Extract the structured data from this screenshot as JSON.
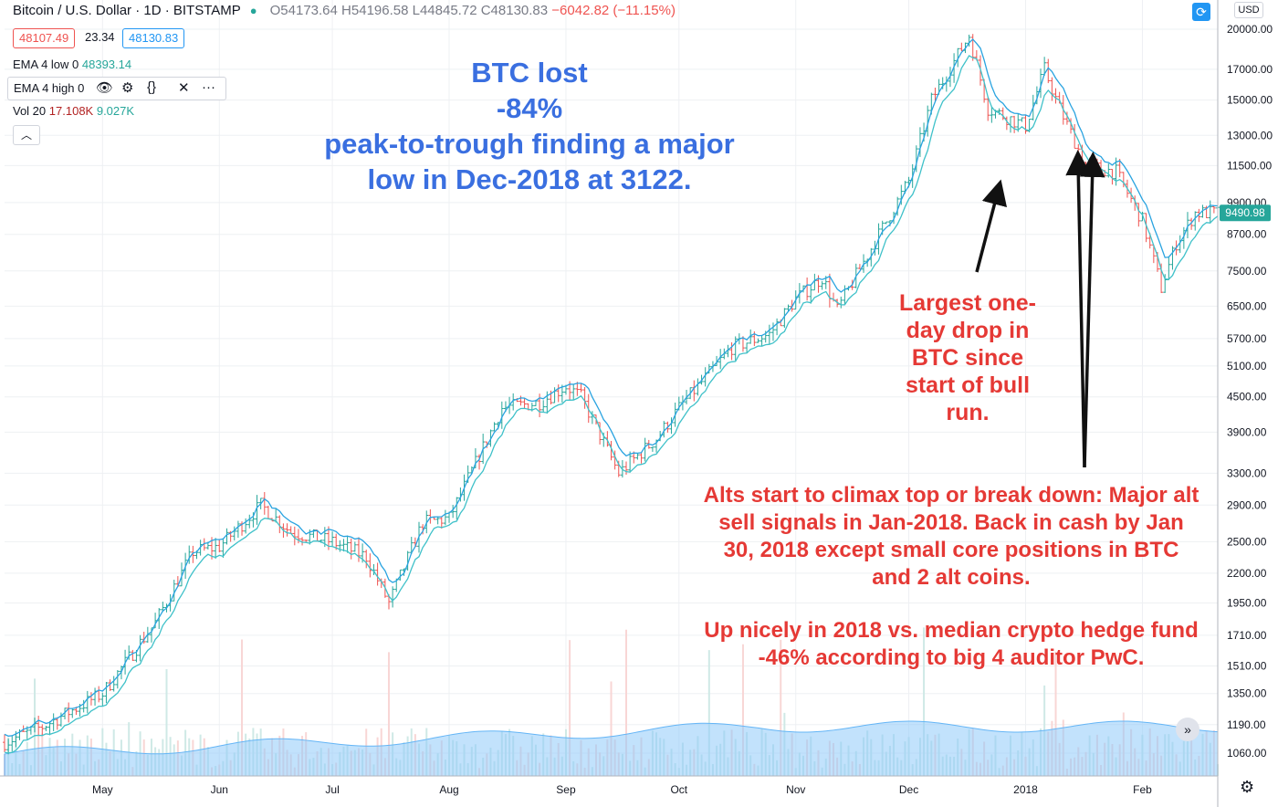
{
  "header": {
    "symbol": "Bitcoin / U.S. Dollar · 1D · BITSTAMP",
    "open": "O54173.64",
    "high": "H54196.58",
    "low": "L44845.72",
    "close": "C48130.83",
    "change": "−6042.82 (−11.15%)"
  },
  "quote": {
    "bid": "48107.49",
    "spread": "23.34",
    "ask": "48130.83"
  },
  "indicators": {
    "ema_low": {
      "label": "EMA 4 low 0",
      "value": "48393.14"
    },
    "ema_high": {
      "label": "EMA 4 high 0"
    },
    "volume": {
      "label": "Vol 20",
      "value1": "17.108K",
      "value2": "9.027K"
    }
  },
  "toolbar": {
    "currency": "USD",
    "collapse_icon": "chevron-up-icon",
    "eye_icon": "eye-icon",
    "settings_icon": "gear-icon",
    "source_icon": "braces-icon",
    "close_icon": "close-icon",
    "more_icon": "more-icon"
  },
  "annotations": {
    "blue": [
      "BTC lost",
      "-84%",
      "peak-to-trough finding a major",
      "low in Dec-2018 at 3122."
    ],
    "red1": [
      "Largest one-",
      "day drop in",
      "BTC since",
      "start of bull",
      "run."
    ],
    "red2": [
      "Alts start to climax top or break down: Major alt",
      "sell signals in Jan-2018. Back in cash by Jan",
      "30, 2018 except small core positions in BTC",
      "and 2 alt coins."
    ],
    "red3": [
      "Up nicely in 2018 vs. median crypto hedge fund",
      "-46% according to big 4 auditor PwC."
    ]
  },
  "colors": {
    "up": "#26a69a",
    "down": "#ef5350",
    "ema": "#29a3e0",
    "volume_area": "#90caf9",
    "last_price_bg": "#26a69a",
    "annotation_red": "#e53935",
    "annotation_blue": "#3a6fe0"
  },
  "chart_data": {
    "type": "line",
    "series": [
      {
        "x": [
          "2017-04-01",
          "2017-04-15",
          "2017-05-01",
          "2017-05-15",
          "2017-05-25",
          "2017-06-01",
          "2017-06-12",
          "2017-06-20",
          "2017-07-01",
          "2017-07-10",
          "2017-07-16",
          "2017-07-25",
          "2017-08-01",
          "2017-08-15",
          "2017-08-25",
          "2017-09-01",
          "2017-09-05",
          "2017-09-15",
          "2017-09-25",
          "2017-10-01",
          "2017-10-15",
          "2017-10-25",
          "2017-11-01",
          "2017-11-08",
          "2017-11-12",
          "2017-11-20",
          "2017-12-01",
          "2017-12-07",
          "2017-12-17",
          "2017-12-22",
          "2018-01-01",
          "2018-01-06",
          "2018-01-10",
          "2018-01-17",
          "2018-01-25",
          "2018-02-01",
          "2018-02-06",
          "2018-02-10",
          "2018-02-15"
        ],
        "values": [
          1080,
          1180,
          1350,
          1800,
          2400,
          2450,
          2900,
          2600,
          2500,
          2350,
          1950,
          2700,
          2750,
          4300,
          4400,
          4700,
          4500,
          3300,
          3800,
          4300,
          5500,
          5800,
          6700,
          7300,
          6400,
          8000,
          10800,
          15000,
          19500,
          14500,
          13500,
          17000,
          14500,
          11500,
          11200,
          9200,
          7000,
          8400,
          9490.98
        ]
      }
    ],
    "yticks": [
      1060,
      1190,
      1350,
      1510,
      1710,
      1950,
      2200,
      2500,
      2900,
      3300,
      3900,
      4500,
      5100,
      5700,
      6500,
      7500,
      8700,
      9900,
      11500,
      13000,
      15000,
      17000,
      20000
    ],
    "ytick_labels": [
      "1060.00",
      "1190.00",
      "1350.00",
      "1510.00",
      "1710.00",
      "1950.00",
      "2200.00",
      "2500.00",
      "2900.00",
      "3300.00",
      "3900.00",
      "4500.00",
      "5100.00",
      "5700.00",
      "6500.00",
      "7500.00",
      "8700.00",
      "9900.00",
      "11500.00",
      "13000.00",
      "15000.00",
      "17000.00",
      "20000.00"
    ],
    "xticks": [
      {
        "date": "2017-05-01",
        "label": "May"
      },
      {
        "date": "2017-06-01",
        "label": "Jun"
      },
      {
        "date": "2017-07-01",
        "label": "Jul"
      },
      {
        "date": "2017-08-01",
        "label": "Aug"
      },
      {
        "date": "2017-09-01",
        "label": "Sep"
      },
      {
        "date": "2017-10-01",
        "label": "Oct"
      },
      {
        "date": "2017-11-01",
        "label": "Nov"
      },
      {
        "date": "2017-12-01",
        "label": "Dec"
      },
      {
        "date": "2018-01-01",
        "label": "2018"
      },
      {
        "date": "2018-02-01",
        "label": "Feb"
      }
    ],
    "last_price": 9490.98,
    "last_price_label": "9490.98",
    "scale": "log",
    "grid": true,
    "title": "",
    "xlabel": "",
    "ylabel": ""
  }
}
